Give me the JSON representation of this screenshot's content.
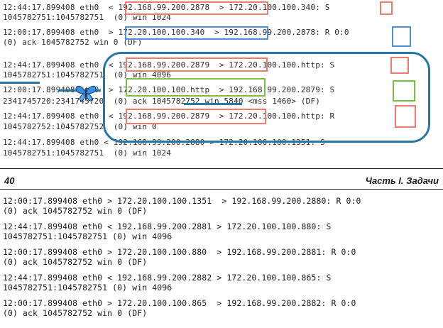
{
  "excerpt_top": {
    "lines": [
      "12:44:17.899408 eth0  < 192.168.99.200.2878  > 172.20.100.100.340: S",
      "1045782751:1045782751  (0) win 1024",
      "12:00:17.899408 eth0  > 172.20.100.100.340  > 192.168.99.200.2878: R 0:0",
      "(0) ack 1045782752 win 0 (DF)",
      "12:44:17.899408 eth0  < 192.168.99.200.2879  > 172.20.100.100.http: S",
      "1045782751:1045782751  (0) win 4096",
      "12:00:17.899408 eth0  > 172.20.100.100.http  > 192.168.99.200.2879: S",
      "2341745720:2341745720  (0) ack 1045782752 win 5840 <mss 1460> (DF)",
      "12:44:17.899408 eth0  < 192.168.99.200.2879  > 172.20.100.100.http: R",
      "1045782752:1045782752  (0) win 0",
      "12:44:17.899408 eth0 < 192.168.99.200.2880 > 172.20.100.100.1351: S",
      "1045782751:1045782751  (0) win 1024"
    ]
  },
  "page_header": {
    "page_number": "40",
    "section_title": "Часть I. Задачи"
  },
  "excerpt_bottom": {
    "lines": [
      "12:00:17.899408 eth0 > 172.20.100.100.1351  > 192.168.99.200.2880: R 0:0",
      "(0) ack 1045782752 win 0 (DF)",
      "12:44:17.899408 eth0 < 192.168.99.200.2881 > 172.20.100.100.880: S",
      "1045782751:1045782751 (0) win 4096",
      "12:00:17.899408 eth0 > 172.20.100.100.880  > 192.168.99.200.2881: R 0:0",
      "(0) ack 1045782752 win 0 (DF)",
      "12:44:17.899408 eth0 < 192.168.99.200.2882 > 172.20.100.100.865: S",
      "1045782751:1045782751 (0) win 4096",
      "12:00:17.899408 eth0 > 172.20.100.100.865  > 192.168.99.200.2882: R 0:0",
      "(0) ack 1045782752 win 0 (DF)"
    ]
  },
  "annotation_colors": {
    "red": "#ef7b6e",
    "blue": "#4f8fd6",
    "green": "#7bc043",
    "teal_oval": "#2677a6"
  },
  "decoration_icon": "butterfly-icon"
}
